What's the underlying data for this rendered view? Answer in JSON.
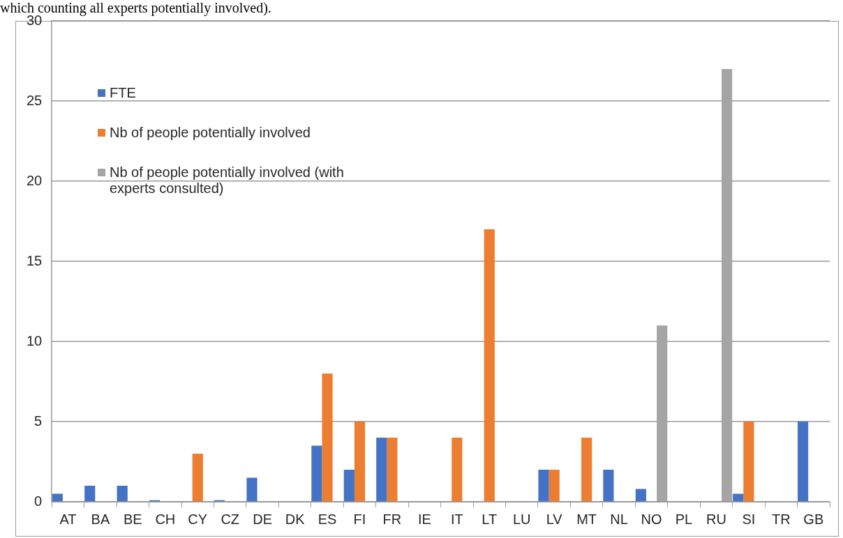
{
  "chart_data": {
    "type": "bar",
    "annotations": [
      "which counting all experts potentially involved)."
    ],
    "categories": [
      "AT",
      "BA",
      "BE",
      "CH",
      "CY",
      "CZ",
      "DE",
      "DK",
      "ES",
      "FI",
      "FR",
      "IE",
      "IT",
      "LT",
      "LU",
      "LV",
      "MT",
      "NL",
      "NO",
      "PL",
      "RU",
      "SI",
      "TR",
      "GB"
    ],
    "series": [
      {
        "name": "FTE",
        "color": "#4472c4",
        "values": [
          0.5,
          1,
          1,
          0.1,
          null,
          0.1,
          1.5,
          null,
          3.5,
          2,
          4,
          null,
          null,
          null,
          null,
          2,
          null,
          2,
          0.8,
          null,
          null,
          0.5,
          null,
          5
        ]
      },
      {
        "name": "Nb of people potentially involved",
        "color": "#ed7d31",
        "values": [
          null,
          null,
          null,
          null,
          3,
          null,
          null,
          null,
          8,
          5,
          4,
          null,
          4,
          17,
          null,
          2,
          4,
          null,
          null,
          null,
          null,
          5,
          null,
          null
        ]
      },
      {
        "name": "Nb of people potentially involved (with experts consulted)",
        "color": "#a5a5a5",
        "values": [
          null,
          null,
          null,
          null,
          null,
          null,
          null,
          null,
          null,
          null,
          null,
          null,
          null,
          null,
          null,
          null,
          null,
          null,
          11,
          null,
          27,
          null,
          null,
          null
        ]
      }
    ],
    "ylim": [
      0,
      30
    ],
    "yticks": [
      0,
      5,
      10,
      15,
      20,
      25,
      30
    ],
    "grid": "y",
    "legend": "top left"
  }
}
